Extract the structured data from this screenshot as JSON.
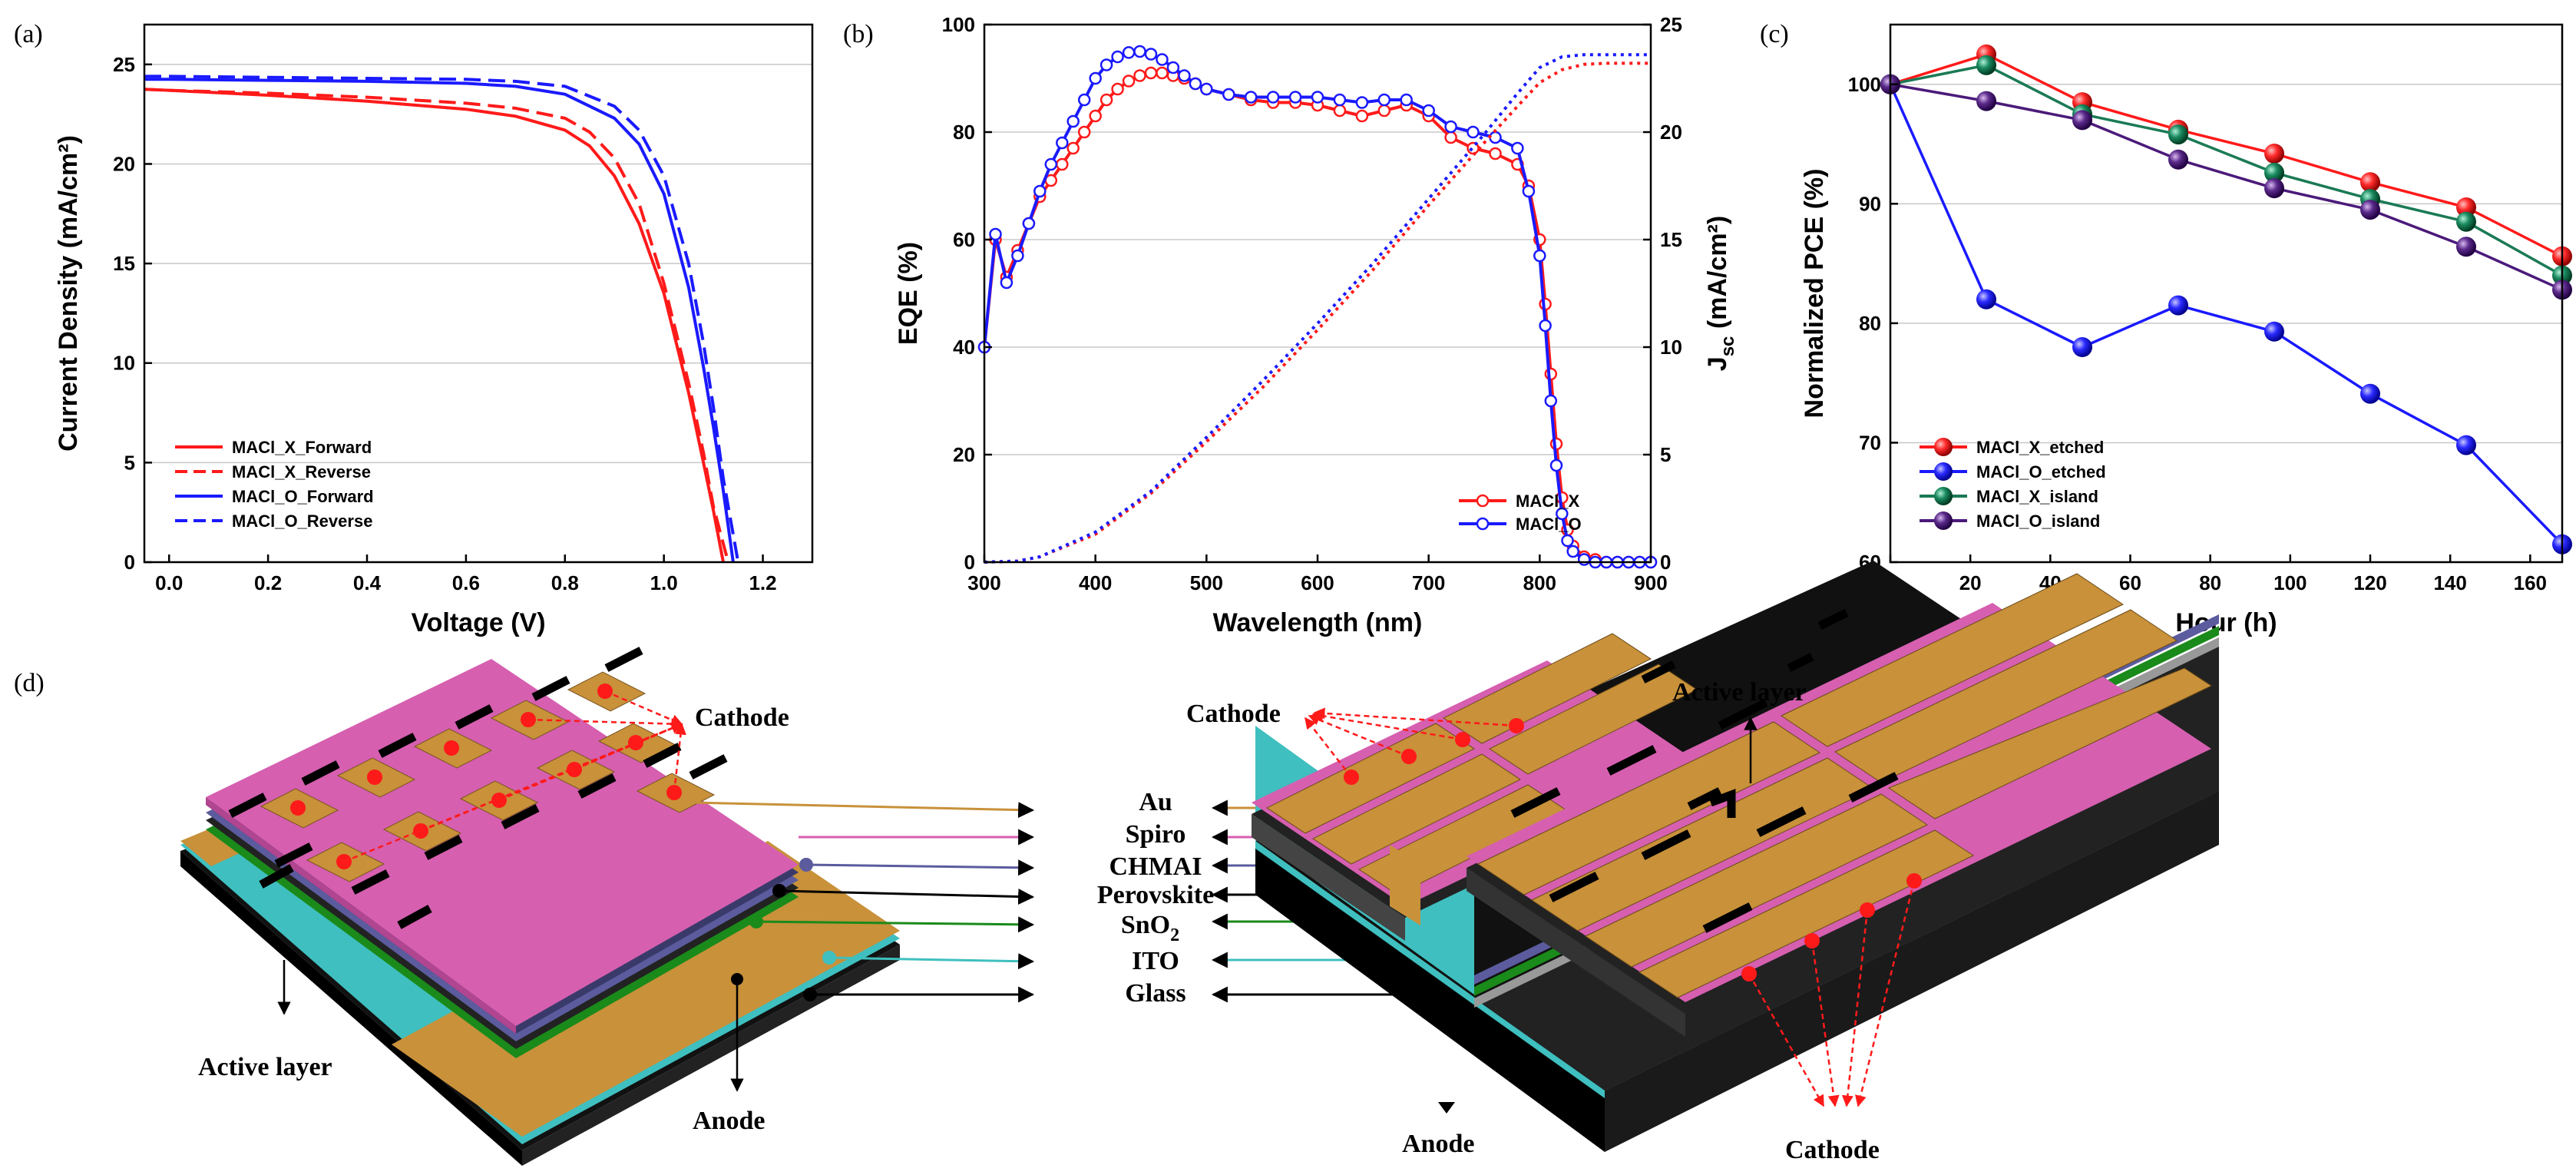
{
  "panel_labels": {
    "a": "(a)",
    "b": "(b)",
    "c": "(c)",
    "d": "(d)"
  },
  "colors": {
    "red": "#ff1a1a",
    "blue": "#1a1aff",
    "green": "#1a7a55",
    "purple": "#4b1a7a",
    "au": "#c8913a",
    "spiro": "#d65fb0",
    "chmai": "#5b5b9e",
    "perovskite": "#222222",
    "sno2": "#1a8a1a",
    "ito": "#3fbfbf",
    "glass": "#111111"
  },
  "chart_data": [
    {
      "id": "a",
      "type": "line",
      "xlabel": "Voltage (V)",
      "ylabel": "Current Density (mA/cm²)",
      "xlim": [
        -0.05,
        1.3
      ],
      "ylim": [
        0,
        27
      ],
      "xticks": [
        "0.0",
        "0.2",
        "0.4",
        "0.6",
        "0.8",
        "1.0",
        "1.2"
      ],
      "xtick_values": [
        0,
        0.2,
        0.4,
        0.6,
        0.8,
        1.0,
        1.2
      ],
      "yticks": [
        "0",
        "5",
        "10",
        "15",
        "20",
        "25"
      ],
      "ytick_values": [
        0,
        5,
        10,
        15,
        20,
        25
      ],
      "grid": "horizontal",
      "legend_position": "bottom-left",
      "series": [
        {
          "name": "MACl_X_Forward",
          "color": "#ff1a1a",
          "style": "solid",
          "x": [
            -0.05,
            0.0,
            0.2,
            0.4,
            0.6,
            0.7,
            0.8,
            0.85,
            0.9,
            0.95,
            1.0,
            1.05,
            1.08,
            1.1,
            1.12
          ],
          "y": [
            23.75,
            23.7,
            23.45,
            23.15,
            22.75,
            22.4,
            21.7,
            20.9,
            19.4,
            17.0,
            13.5,
            8.5,
            5.0,
            2.6,
            0.0
          ]
        },
        {
          "name": "MACl_X_Reverse",
          "color": "#ff1a1a",
          "style": "dashed",
          "x": [
            -0.05,
            0.0,
            0.2,
            0.4,
            0.6,
            0.7,
            0.8,
            0.85,
            0.9,
            0.95,
            1.0,
            1.05,
            1.08,
            1.1,
            1.13
          ],
          "y": [
            23.75,
            23.7,
            23.55,
            23.35,
            23.05,
            22.8,
            22.3,
            21.6,
            20.3,
            18.0,
            14.0,
            9.0,
            5.5,
            2.8,
            0.0
          ]
        },
        {
          "name": "MACl_O_Forward",
          "color": "#1a1aff",
          "style": "solid",
          "x": [
            -0.05,
            0.0,
            0.2,
            0.4,
            0.6,
            0.7,
            0.8,
            0.9,
            0.95,
            1.0,
            1.05,
            1.08,
            1.1,
            1.12,
            1.14
          ],
          "y": [
            24.25,
            24.25,
            24.2,
            24.15,
            24.05,
            23.9,
            23.5,
            22.3,
            21.0,
            18.5,
            13.8,
            9.8,
            6.8,
            3.6,
            0.0
          ]
        },
        {
          "name": "MACl_O_Reverse",
          "color": "#1a1aff",
          "style": "dashed",
          "x": [
            -0.05,
            0.0,
            0.2,
            0.4,
            0.6,
            0.7,
            0.8,
            0.9,
            0.95,
            1.0,
            1.05,
            1.08,
            1.1,
            1.12,
            1.15
          ],
          "y": [
            24.4,
            24.4,
            24.35,
            24.3,
            24.25,
            24.15,
            23.9,
            22.9,
            21.7,
            19.4,
            15.0,
            11.0,
            7.8,
            4.2,
            0.0
          ]
        }
      ]
    },
    {
      "id": "b",
      "type": "line",
      "xlabel": "Wavelength (nm)",
      "ylabel": "EQE (%)",
      "y2label_main": "J",
      "y2label_sub": "sc",
      "y2label_rest": " (mA/cm²)",
      "xlim": [
        300,
        900
      ],
      "ylim": [
        0,
        100
      ],
      "y2lim": [
        0,
        25
      ],
      "xticks": [
        "300",
        "400",
        "500",
        "600",
        "700",
        "800",
        "900"
      ],
      "xtick_values": [
        300,
        400,
        500,
        600,
        700,
        800,
        900
      ],
      "yticks": [
        "0",
        "20",
        "40",
        "60",
        "80",
        "100"
      ],
      "ytick_values": [
        0,
        20,
        40,
        60,
        80,
        100
      ],
      "y2ticks": [
        "0",
        "5",
        "10",
        "15",
        "20",
        "25"
      ],
      "y2tick_values": [
        0,
        5,
        10,
        15,
        20,
        25
      ],
      "grid": "horizontal",
      "legend_position": "bottom-right",
      "series": [
        {
          "name": "MACl_X",
          "color": "#ff1a1a",
          "style": "solid",
          "marker": "circle",
          "x": [
            300,
            310,
            320,
            330,
            340,
            350,
            360,
            370,
            380,
            390,
            400,
            410,
            420,
            430,
            440,
            450,
            460,
            470,
            480,
            490,
            500,
            520,
            540,
            560,
            580,
            600,
            620,
            640,
            660,
            680,
            700,
            720,
            740,
            760,
            780,
            790,
            800,
            805,
            810,
            815,
            820,
            825,
            830,
            840,
            850,
            860,
            870,
            880,
            890,
            900
          ],
          "y": [
            40,
            60,
            53,
            58,
            63,
            68,
            71,
            74,
            77,
            80,
            83,
            86,
            88,
            89.5,
            90.5,
            91,
            91,
            90.5,
            90,
            89,
            88,
            87,
            86,
            85.5,
            85.5,
            85,
            84,
            83,
            84,
            85,
            83,
            79,
            77,
            76,
            74,
            70,
            60,
            48,
            35,
            22,
            12,
            6,
            3,
            1,
            0.5,
            0,
            0,
            0,
            0,
            0
          ]
        },
        {
          "name": "MACl_O",
          "color": "#1a1aff",
          "style": "solid",
          "marker": "circle",
          "x": [
            300,
            310,
            320,
            330,
            340,
            350,
            360,
            370,
            380,
            390,
            400,
            410,
            420,
            430,
            440,
            450,
            460,
            470,
            480,
            490,
            500,
            520,
            540,
            560,
            580,
            600,
            620,
            640,
            660,
            680,
            700,
            720,
            740,
            760,
            780,
            790,
            800,
            805,
            810,
            815,
            820,
            825,
            830,
            840,
            850,
            860,
            870,
            880,
            890,
            900
          ],
          "y": [
            40,
            61,
            52,
            57,
            63,
            69,
            74,
            78,
            82,
            86,
            90,
            92.5,
            94,
            94.8,
            95,
            94.5,
            93.5,
            92,
            90.5,
            89,
            88,
            87,
            86.5,
            86.5,
            86.5,
            86.5,
            86,
            85.5,
            86,
            86,
            84,
            81,
            80,
            79,
            77,
            69,
            57,
            44,
            30,
            18,
            9,
            4,
            2,
            0.5,
            0,
            0,
            0,
            0,
            0,
            0
          ]
        },
        {
          "name": "MACl_X Jsc",
          "color": "#ff1a1a",
          "style": "dotted",
          "axis": "y2",
          "x": [
            300,
            330,
            350,
            400,
            450,
            500,
            550,
            600,
            650,
            700,
            750,
            780,
            800,
            820,
            840,
            860,
            880,
            900
          ],
          "y": [
            0,
            0.05,
            0.25,
            1.3,
            3.2,
            5.6,
            8.1,
            10.8,
            13.6,
            16.6,
            19.5,
            21.2,
            22.3,
            22.9,
            23.15,
            23.2,
            23.2,
            23.2
          ]
        },
        {
          "name": "MACl_O Jsc",
          "color": "#1a1aff",
          "style": "dotted",
          "axis": "y2",
          "x": [
            300,
            330,
            350,
            400,
            450,
            500,
            550,
            600,
            650,
            700,
            750,
            780,
            800,
            820,
            840,
            860,
            880,
            900
          ],
          "y": [
            0,
            0.05,
            0.25,
            1.4,
            3.3,
            5.8,
            8.4,
            11.1,
            13.9,
            16.9,
            19.9,
            21.8,
            23.0,
            23.5,
            23.6,
            23.6,
            23.6,
            23.6
          ]
        }
      ],
      "legend_series": [
        "MACl_X",
        "MACl_O"
      ]
    },
    {
      "id": "c",
      "type": "line",
      "xlabel": "Hour (h)",
      "ylabel": "Normalized PCE (%)",
      "xlim": [
        0,
        168
      ],
      "ylim": [
        60,
        105
      ],
      "xticks": [
        "0",
        "20",
        "40",
        "60",
        "80",
        "100",
        "120",
        "140",
        "160"
      ],
      "xtick_values": [
        0,
        20,
        40,
        60,
        80,
        100,
        120,
        140,
        160
      ],
      "yticks": [
        "60",
        "70",
        "80",
        "90",
        "100"
      ],
      "ytick_values": [
        60,
        70,
        80,
        90,
        100
      ],
      "grid": "horizontal",
      "legend_position": "bottom-left",
      "series": [
        {
          "name": "MACl_X_etched",
          "color": "#ff1a1a",
          "marker": "ball",
          "x": [
            0,
            24,
            48,
            72,
            96,
            120,
            144,
            168
          ],
          "y": [
            100,
            102.5,
            98.5,
            96.2,
            94.2,
            91.8,
            89.7,
            85.6
          ]
        },
        {
          "name": "MACl_O_etched",
          "color": "#1a1aff",
          "marker": "ball",
          "x": [
            0,
            24,
            48,
            72,
            96,
            120,
            144,
            168
          ],
          "y": [
            100,
            82,
            78,
            81.5,
            79.3,
            74.1,
            69.8,
            61.5
          ]
        },
        {
          "name": "MACl_X_island",
          "color": "#1a7a55",
          "marker": "ball",
          "x": [
            0,
            24,
            48,
            72,
            96,
            120,
            144,
            168
          ],
          "y": [
            100,
            101.6,
            97.5,
            95.8,
            92.6,
            90.4,
            88.5,
            84
          ]
        },
        {
          "name": "MACl_O_island",
          "color": "#4b1a7a",
          "marker": "ball",
          "x": [
            0,
            24,
            48,
            72,
            96,
            120,
            144,
            168
          ],
          "y": [
            100,
            98.6,
            97,
            93.7,
            91.3,
            89.5,
            86.4,
            82.8
          ]
        }
      ]
    }
  ],
  "diagram": {
    "layers": [
      "Au",
      "Spiro",
      "CHMAI",
      "Perovskite",
      "SnO",
      "ITO",
      "Glass"
    ],
    "sno2_sub": "2",
    "cathode_label": "Cathode",
    "anode_label": "Anode",
    "active_layer_label": "Active layer"
  }
}
